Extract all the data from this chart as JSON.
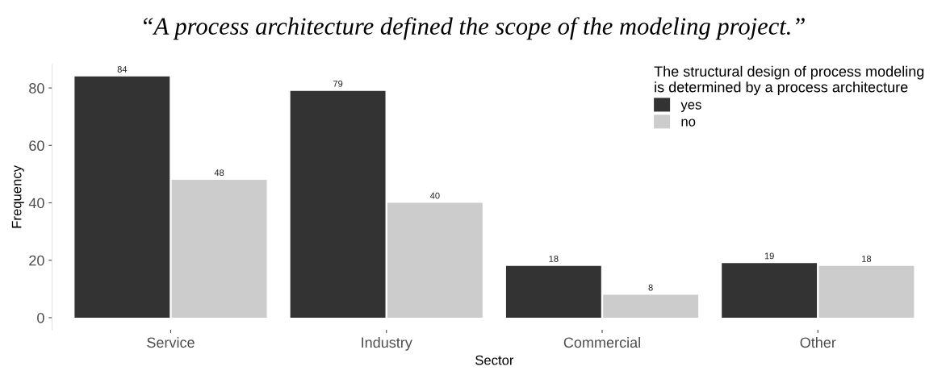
{
  "chart_data": {
    "type": "bar",
    "title": "“A process architecture defined the scope of the modeling project.”",
    "xlabel": "Sector",
    "ylabel": "Frequency",
    "legend_title": "The structural design of process modeling\nis determined by a process architecture",
    "categories": [
      "Service",
      "Industry",
      "Commercial",
      "Other"
    ],
    "series": [
      {
        "name": "yes",
        "color": "#333333",
        "values": [
          84,
          79,
          18,
          19
        ]
      },
      {
        "name": "no",
        "color": "#cccccc",
        "values": [
          48,
          40,
          8,
          18
        ]
      }
    ],
    "ylim": [
      -4.2,
      88.2
    ],
    "yticks": [
      0,
      20,
      40,
      60,
      80
    ],
    "data_labels": true,
    "grid": false,
    "legend": "top right"
  }
}
